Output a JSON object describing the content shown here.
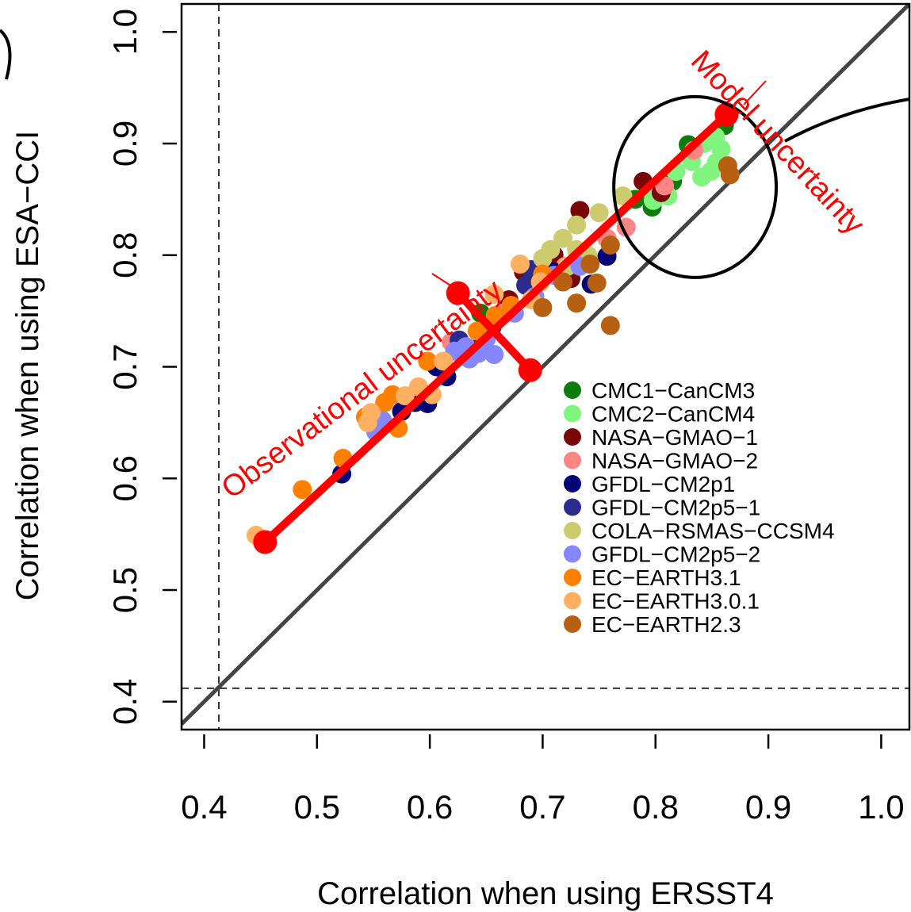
{
  "chart_data": {
    "type": "scatter",
    "title": "",
    "xlabel": "Correlation when using ERSST4",
    "ylabel": "Correlation when using ESA−CCI",
    "xlim": [
      0.38,
      1.025
    ],
    "ylim": [
      0.375,
      1.025
    ],
    "xticks": [
      "0.4",
      "0.5",
      "0.6",
      "0.7",
      "0.8",
      "0.9",
      "1.0"
    ],
    "yticks": [
      "0.4",
      "0.5",
      "0.6",
      "0.7",
      "0.8",
      "0.9",
      "1.0"
    ],
    "grid": false,
    "legend_position": "bottom-right",
    "reference_line": {
      "type": "identity",
      "from": [
        0.38,
        0.38
      ],
      "to": [
        1.03,
        1.03
      ],
      "color": "#444444"
    },
    "dashed_lines": {
      "vertical_x": 0.413,
      "horizontal_y": 0.412
    },
    "fit_line": {
      "from": [
        0.454,
        0.543
      ],
      "to": [
        0.863,
        0.926
      ],
      "color": "#ff0000"
    },
    "perpendicular_line": {
      "from": [
        0.625,
        0.766
      ],
      "to": [
        0.689,
        0.697
      ],
      "color": "#ff0000"
    },
    "ellipse": {
      "center": [
        0.835,
        0.861
      ],
      "rx": 0.072,
      "ry": 0.081
    },
    "annotations": [
      {
        "text": "Observational uncertainty",
        "at": [
          0.545,
          0.673
        ],
        "angle": -37,
        "color": "#ff0000"
      },
      {
        "text": "Model uncertainty",
        "at": [
          0.902,
          0.895
        ],
        "angle": 47,
        "color": "#ff0000"
      }
    ],
    "series": [
      {
        "name": "CMC1−CanCM3",
        "color": "#0c7d0c",
        "points": [
          [
            0.861,
            0.916
          ],
          [
            0.829,
            0.899
          ],
          [
            0.815,
            0.866
          ],
          [
            0.797,
            0.843
          ],
          [
            0.782,
            0.85
          ],
          [
            0.645,
            0.748
          ]
        ]
      },
      {
        "name": "CMC2−CanCM4",
        "color": "#7ff57f",
        "points": [
          [
            0.853,
            0.906
          ],
          [
            0.843,
            0.9
          ],
          [
            0.858,
            0.895
          ],
          [
            0.818,
            0.875
          ],
          [
            0.841,
            0.87
          ],
          [
            0.849,
            0.875
          ],
          [
            0.811,
            0.853
          ],
          [
            0.798,
            0.849
          ],
          [
            0.832,
            0.884
          ],
          [
            0.854,
            0.883
          ]
        ]
      },
      {
        "name": "NASA−GMAO−1",
        "color": "#7a0707",
        "points": [
          [
            0.789,
            0.866
          ],
          [
            0.805,
            0.856
          ],
          [
            0.733,
            0.84
          ],
          [
            0.71,
            0.8
          ],
          [
            0.683,
            0.785
          ],
          [
            0.67,
            0.76
          ],
          [
            0.725,
            0.779
          ]
        ]
      },
      {
        "name": "NASA−GMAO−2",
        "color": "#ff8585",
        "points": [
          [
            0.834,
            0.894
          ],
          [
            0.808,
            0.862
          ],
          [
            0.774,
            0.825
          ],
          [
            0.757,
            0.815
          ],
          [
            0.72,
            0.79
          ],
          [
            0.663,
            0.748
          ],
          [
            0.619,
            0.722
          ]
        ]
      },
      {
        "name": "GFDL−CM2p1",
        "color": "#05057a",
        "points": [
          [
            0.522,
            0.604
          ],
          [
            0.575,
            0.66
          ],
          [
            0.587,
            0.668
          ],
          [
            0.598,
            0.667
          ],
          [
            0.615,
            0.691
          ],
          [
            0.606,
            0.7
          ],
          [
            0.71,
            0.785
          ],
          [
            0.757,
            0.799
          ],
          [
            0.743,
            0.774
          ]
        ]
      },
      {
        "name": "GFDL−CM2p5−1",
        "color": "#2c2c8f",
        "points": [
          [
            0.626,
            0.724
          ],
          [
            0.685,
            0.773
          ],
          [
            0.69,
            0.787
          ],
          [
            0.655,
            0.735
          ],
          [
            0.645,
            0.718
          ]
        ]
      },
      {
        "name": "COLA−RSMAS−CCSM4",
        "color": "#cccc6e",
        "points": [
          [
            0.771,
            0.853
          ],
          [
            0.75,
            0.838
          ],
          [
            0.73,
            0.827
          ],
          [
            0.718,
            0.815
          ],
          [
            0.707,
            0.805
          ],
          [
            0.7,
            0.797
          ],
          [
            0.73,
            0.805
          ],
          [
            0.74,
            0.8
          ],
          [
            0.722,
            0.79
          ]
        ]
      },
      {
        "name": "GFDL−CM2p5−2",
        "color": "#8686ff",
        "points": [
          [
            0.558,
            0.652
          ],
          [
            0.552,
            0.642
          ],
          [
            0.622,
            0.714
          ],
          [
            0.632,
            0.718
          ],
          [
            0.643,
            0.712
          ],
          [
            0.657,
            0.711
          ],
          [
            0.635,
            0.707
          ],
          [
            0.65,
            0.725
          ],
          [
            0.675,
            0.748
          ],
          [
            0.693,
            0.763
          ],
          [
            0.71,
            0.782
          ],
          [
            0.733,
            0.79
          ]
        ]
      },
      {
        "name": "EC−EARTH3.1",
        "color": "#ff7f00",
        "points": [
          [
            0.487,
            0.59
          ],
          [
            0.523,
            0.618
          ],
          [
            0.543,
            0.655
          ],
          [
            0.56,
            0.668
          ],
          [
            0.567,
            0.675
          ],
          [
            0.572,
            0.645
          ],
          [
            0.598,
            0.705
          ],
          [
            0.642,
            0.732
          ],
          [
            0.658,
            0.746
          ],
          [
            0.7,
            0.783
          ],
          [
            0.672,
            0.755
          ]
        ]
      },
      {
        "name": "EC−EARTH3.0.1",
        "color": "#ffb060",
        "points": [
          [
            0.446,
            0.549
          ],
          [
            0.545,
            0.65
          ],
          [
            0.548,
            0.659
          ],
          [
            0.578,
            0.674
          ],
          [
            0.59,
            0.682
          ],
          [
            0.602,
            0.675
          ],
          [
            0.612,
            0.705
          ],
          [
            0.657,
            0.765
          ],
          [
            0.68,
            0.792
          ],
          [
            0.698,
            0.776
          ],
          [
            0.69,
            0.76
          ]
        ]
      },
      {
        "name": "EC−EARTH2.3",
        "color": "#b86012",
        "points": [
          [
            0.864,
            0.88
          ],
          [
            0.866,
            0.872
          ],
          [
            0.76,
            0.809
          ],
          [
            0.742,
            0.792
          ],
          [
            0.748,
            0.775
          ],
          [
            0.718,
            0.776
          ],
          [
            0.73,
            0.757
          ],
          [
            0.7,
            0.753
          ],
          [
            0.76,
            0.737
          ]
        ]
      }
    ],
    "fit_points": [
      [
        0.454,
        0.543
      ],
      [
        0.863,
        0.926
      ]
    ],
    "perp_points": [
      [
        0.625,
        0.766
      ],
      [
        0.689,
        0.697
      ]
    ]
  }
}
